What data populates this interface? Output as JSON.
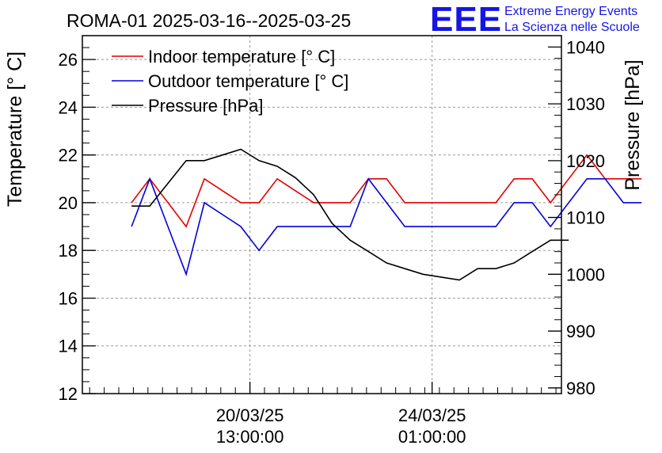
{
  "chart_data": {
    "type": "line",
    "title": "ROMA-01 2025-03-16--2025-03-25",
    "logo": {
      "text": "EEE",
      "line1": "Extreme Energy Events",
      "line2": "La Scienza nelle Scuole"
    },
    "ylabel": "Temperature [° C]",
    "y2label": "Pressure [hPa]",
    "ylim": [
      12,
      27
    ],
    "y2lim": [
      979,
      1042
    ],
    "yticks": [
      "12",
      "14",
      "16",
      "18",
      "20",
      "22",
      "24",
      "26"
    ],
    "y2ticks": [
      "980",
      "990",
      "1000",
      "1010",
      "1020",
      "1030",
      "1040"
    ],
    "x_index_range": [
      -2.7,
      23.6
    ],
    "xticks": [
      {
        "index": 6.5,
        "line1": "20/03/25",
        "line2": "13:00:00"
      },
      {
        "index": 16.5,
        "line1": "24/03/25",
        "line2": "01:00:00"
      }
    ],
    "series": [
      {
        "name": "Indoor temperature [° C]",
        "color": "#e00000",
        "axis": "left",
        "values": [
          20,
          21,
          20,
          19,
          21,
          20.5,
          20,
          20,
          21,
          20.5,
          20,
          20,
          20,
          21,
          21,
          20,
          20,
          20,
          20,
          20,
          20,
          21,
          21,
          20,
          21,
          22,
          21,
          21,
          21
        ]
      },
      {
        "name": "Outdoor temperature [° C]",
        "color": "#0000dd",
        "axis": "left",
        "values": [
          19,
          21,
          19,
          17,
          20,
          19.5,
          19,
          18,
          19,
          19,
          19,
          19,
          19,
          21,
          20,
          19,
          19,
          19,
          19,
          19,
          19,
          20,
          20,
          19,
          20,
          21,
          21,
          20,
          20
        ]
      },
      {
        "name": "Pressure [hPa]",
        "color": "#000000",
        "axis": "right",
        "values": [
          1012,
          1012,
          1016,
          1020,
          1020,
          1021,
          1022,
          1020,
          1019,
          1017,
          1014,
          1009,
          1006,
          1004,
          1002,
          1001,
          1000,
          999.5,
          999,
          1001,
          1001,
          1002,
          1004,
          1006,
          1006
        ]
      }
    ]
  }
}
